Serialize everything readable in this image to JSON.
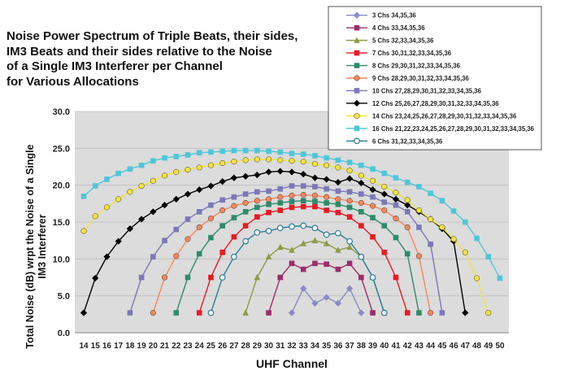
{
  "chart_data": {
    "type": "line",
    "title": "Noise Power Spectrum of Triple Beats, their sides,\nIM3 Beats and their sides relative to the Noise\nof a Single IM3 Interferer per Channel\nfor Various Allocations",
    "xlabel": "UHF Channel",
    "ylabel": "Total Noise (dB) wrpt the Noise of a Single\nIM3 Interferer",
    "xlim": [
      14,
      50
    ],
    "ylim": [
      0,
      30
    ],
    "x_ticks": [
      "14",
      "15",
      "16",
      "17",
      "18",
      "19",
      "20",
      "21",
      "22",
      "23",
      "24",
      "25",
      "26",
      "27",
      "28",
      "29",
      "30",
      "31",
      "32",
      "33",
      "34",
      "35",
      "36",
      "37",
      "38",
      "39",
      "40",
      "41",
      "42",
      "43",
      "44",
      "45",
      "46",
      "47",
      "48",
      "49",
      "50"
    ],
    "y_ticks": [
      "0.0",
      "5.0",
      "10.0",
      "15.0",
      "20.0",
      "25.0",
      "30.0"
    ],
    "grid": true,
    "legend_position": "top-right",
    "series": [
      {
        "name": "3 Chs 34,35,36",
        "color": "#8a8ac6",
        "marker": "diamond",
        "x": [
          32,
          33,
          34,
          35,
          36,
          37,
          38
        ],
        "y": [
          2.7,
          6.0,
          4.0,
          4.8,
          4.0,
          6.0,
          2.7
        ]
      },
      {
        "name": "4 Chs 33,34,35,36",
        "color": "#9c2d6a",
        "marker": "square",
        "x": [
          30,
          31,
          32,
          33,
          34,
          35,
          36,
          37,
          38,
          39
        ],
        "y": [
          2.7,
          7.5,
          9.4,
          8.6,
          9.4,
          9.3,
          8.6,
          9.4,
          7.5,
          2.7
        ]
      },
      {
        "name": "5 Chs 32,33,34,35,36",
        "color": "#8c9c46",
        "marker": "triangle",
        "x": [
          28,
          29,
          30,
          31,
          32,
          33,
          34,
          35,
          36,
          37,
          38,
          39,
          40
        ],
        "y": [
          2.7,
          7.5,
          10.3,
          11.6,
          11.2,
          12.1,
          12.5,
          12.1,
          11.2,
          11.6,
          10.3,
          7.5,
          2.7
        ]
      },
      {
        "name": "7 Chs 30,31,32,33,34,35,36",
        "color": "#e51b24",
        "marker": "square",
        "x": [
          24,
          25,
          26,
          27,
          28,
          29,
          30,
          31,
          32,
          33,
          34,
          35,
          36,
          37,
          38,
          39,
          40,
          41,
          42
        ],
        "y": [
          2.7,
          7.5,
          10.9,
          13.0,
          14.5,
          15.7,
          16.3,
          16.6,
          17.0,
          17.1,
          17.1,
          16.6,
          16.3,
          15.7,
          14.5,
          13.0,
          10.9,
          7.5,
          2.7
        ]
      },
      {
        "name": "8 Chs 29,30,31,32,33,34,35,36",
        "color": "#2e8b6a",
        "marker": "square",
        "x": [
          22,
          23,
          24,
          25,
          26,
          27,
          28,
          29,
          30,
          31,
          32,
          33,
          34,
          35,
          36,
          37,
          38,
          39,
          40,
          41,
          42,
          43
        ],
        "y": [
          2.7,
          7.5,
          10.7,
          12.9,
          14.5,
          15.6,
          16.4,
          17.0,
          17.4,
          17.6,
          17.8,
          17.9,
          17.8,
          17.6,
          17.4,
          17.0,
          16.4,
          15.6,
          14.5,
          12.9,
          10.7,
          2.7
        ]
      },
      {
        "name": "9 Chs 28,29,30,31,32,33,34,35,36",
        "color": "#f4875a",
        "marker": "circle",
        "x": [
          20,
          21,
          22,
          23,
          24,
          25,
          26,
          27,
          28,
          29,
          30,
          31,
          32,
          33,
          34,
          35,
          36,
          37,
          38,
          39,
          40,
          41,
          42,
          43,
          44
        ],
        "y": [
          2.7,
          7.5,
          10.4,
          12.7,
          14.3,
          15.5,
          16.6,
          17.2,
          17.6,
          17.9,
          18.1,
          18.4,
          18.6,
          18.7,
          18.6,
          18.4,
          18.1,
          17.9,
          17.6,
          17.2,
          16.6,
          15.5,
          14.3,
          10.4,
          2.7
        ]
      },
      {
        "name": "10 Chs 27,28,29,30,31,32,33,34,35,36",
        "color": "#7b78b8",
        "marker": "square",
        "x": [
          18,
          19,
          20,
          21,
          22,
          23,
          24,
          25,
          26,
          27,
          28,
          29,
          30,
          31,
          32,
          33,
          34,
          35,
          36,
          37,
          38,
          39,
          40,
          41,
          42,
          43,
          44,
          45
        ],
        "y": [
          2.7,
          7.5,
          10.3,
          12.5,
          14.0,
          15.4,
          16.4,
          17.3,
          18.0,
          18.4,
          18.8,
          19.1,
          19.2,
          19.5,
          19.9,
          19.9,
          19.8,
          19.5,
          19.2,
          19.1,
          18.8,
          18.4,
          17.7,
          17.3,
          16.4,
          14.3,
          12.0,
          2.7
        ]
      },
      {
        "name": "12 Chs 25,26,27,28,29,30,31,32,33,34,35,36",
        "color": "#000000",
        "marker": "diamond",
        "x": [
          14,
          15,
          16,
          17,
          18,
          19,
          20,
          21,
          22,
          23,
          24,
          25,
          26,
          27,
          28,
          29,
          30,
          31,
          32,
          33,
          34,
          35,
          36,
          37,
          38,
          39,
          40,
          41,
          42,
          43,
          44,
          45,
          46,
          47
        ],
        "y": [
          2.7,
          7.4,
          10.3,
          12.4,
          14.1,
          15.4,
          16.4,
          17.3,
          18.1,
          18.8,
          19.4,
          19.9,
          20.5,
          21.0,
          21.2,
          21.4,
          21.8,
          21.9,
          21.8,
          21.5,
          21.0,
          20.8,
          20.4,
          20.9,
          20.3,
          19.4,
          18.8,
          18.1,
          17.3,
          16.4,
          15.4,
          14.1,
          12.4,
          2.7
        ]
      },
      {
        "name": "14 Chs 23,24,25,26,27,28,29,30,31,32,33,34,35,36",
        "color": "#f5e33b",
        "marker": "circle",
        "x": [
          14,
          15,
          16,
          17,
          18,
          19,
          20,
          21,
          22,
          23,
          24,
          25,
          26,
          27,
          28,
          29,
          30,
          31,
          32,
          33,
          34,
          35,
          36,
          37,
          38,
          39,
          40,
          41,
          42,
          43,
          44,
          45,
          46,
          47,
          48,
          49
        ],
        "y": [
          13.8,
          15.8,
          17.0,
          18.1,
          19.1,
          19.9,
          20.6,
          21.3,
          21.8,
          22.1,
          22.4,
          22.7,
          23.0,
          23.2,
          23.4,
          23.5,
          23.5,
          23.4,
          23.3,
          23.2,
          22.9,
          22.7,
          22.4,
          22.0,
          21.3,
          20.6,
          19.8,
          19.0,
          18.0,
          16.6,
          15.4,
          14.3,
          12.7,
          10.9,
          7.4,
          2.7
        ]
      },
      {
        "name": "16 Chs 21,22,23,24,25,26,27,28,29,30,31,32,33,34,35,36",
        "color": "#4fc6d9",
        "marker": "square",
        "x": [
          14,
          15,
          16,
          17,
          18,
          19,
          20,
          21,
          22,
          23,
          24,
          25,
          26,
          27,
          28,
          29,
          30,
          31,
          32,
          33,
          34,
          35,
          36,
          37,
          38,
          39,
          40,
          41,
          42,
          43,
          44,
          45,
          46,
          47,
          48,
          49,
          50
        ],
        "y": [
          18.5,
          19.9,
          20.8,
          21.6,
          22.2,
          22.7,
          23.3,
          23.7,
          23.9,
          24.1,
          24.4,
          24.5,
          24.6,
          24.7,
          24.7,
          24.7,
          24.6,
          24.5,
          24.3,
          24.2,
          24.0,
          23.7,
          23.4,
          23.1,
          22.7,
          22.2,
          21.6,
          21.0,
          20.4,
          19.8,
          18.9,
          17.9,
          16.5,
          15.0,
          12.8,
          10.3,
          7.4
        ]
      },
      {
        "name": "6 Chs 31,32,33,34,35,36",
        "color": "#2c7d96",
        "marker": "circle-open",
        "x": [
          25,
          26,
          27,
          28,
          29,
          30,
          31,
          32,
          33,
          34,
          35,
          36,
          37,
          38,
          39,
          40
        ],
        "y": [
          2.7,
          7.5,
          10.3,
          12.4,
          13.6,
          13.8,
          14.2,
          14.4,
          14.5,
          14.2,
          13.3,
          13.5,
          12.4,
          10.3,
          7.5,
          2.7
        ]
      }
    ]
  }
}
